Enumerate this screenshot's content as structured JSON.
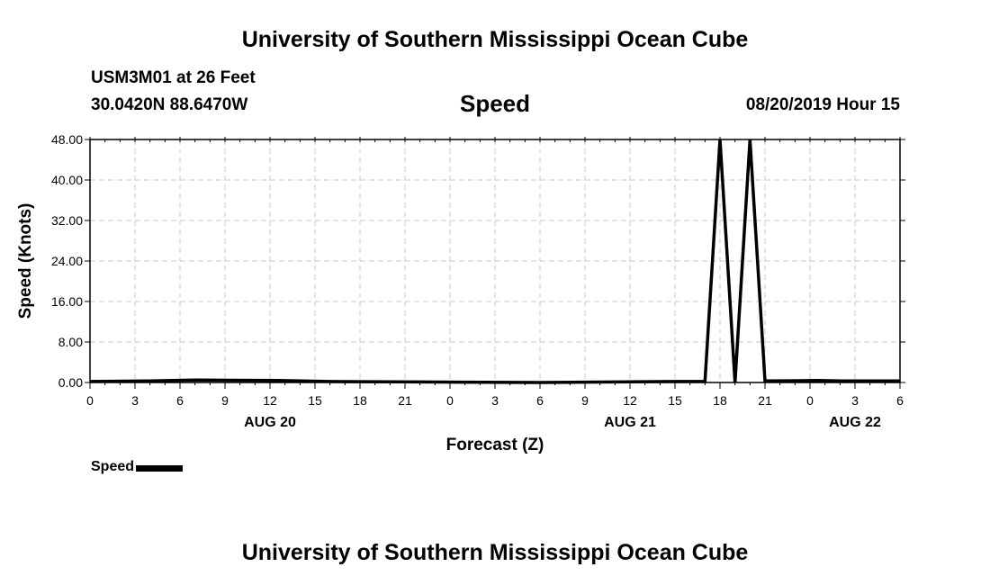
{
  "header": {
    "title": "University of Southern Mississippi Ocean Cube",
    "station": "USM3M01 at 26 Feet",
    "coordinates": "30.0420N 88.6470W",
    "chart_title": "Speed",
    "datetime": "08/20/2019 Hour 15"
  },
  "footer": {
    "title": "University of Southern Mississippi Ocean Cube"
  },
  "legend": {
    "label": "Speed",
    "color": "#000000"
  },
  "chart_data": {
    "type": "line",
    "title": "Speed",
    "xlabel": "Forecast (Z)",
    "ylabel": "Speed (Knots)",
    "x_unit": "hours since 08/20 00Z",
    "xlim": [
      0,
      54
    ],
    "ylim": [
      0,
      48
    ],
    "grid": true,
    "yticks": [
      "0.00",
      "8.00",
      "16.00",
      "24.00",
      "32.00",
      "40.00",
      "48.00"
    ],
    "xticks": [
      {
        "x": 0,
        "label": "0"
      },
      {
        "x": 3,
        "label": "3"
      },
      {
        "x": 6,
        "label": "6"
      },
      {
        "x": 9,
        "label": "9"
      },
      {
        "x": 12,
        "label": "12"
      },
      {
        "x": 15,
        "label": "15"
      },
      {
        "x": 18,
        "label": "18"
      },
      {
        "x": 21,
        "label": "21"
      },
      {
        "x": 24,
        "label": "0"
      },
      {
        "x": 27,
        "label": "3"
      },
      {
        "x": 30,
        "label": "6"
      },
      {
        "x": 33,
        "label": "9"
      },
      {
        "x": 36,
        "label": "12"
      },
      {
        "x": 39,
        "label": "15"
      },
      {
        "x": 42,
        "label": "18"
      },
      {
        "x": 45,
        "label": "21"
      },
      {
        "x": 48,
        "label": "0"
      },
      {
        "x": 51,
        "label": "3"
      },
      {
        "x": 54,
        "label": "6"
      }
    ],
    "date_labels": [
      {
        "x": 12,
        "label": "AUG 20"
      },
      {
        "x": 36,
        "label": "AUG 21"
      },
      {
        "x": 51,
        "label": "AUG 22"
      }
    ],
    "series": [
      {
        "name": "Speed",
        "color": "#000000",
        "points": [
          [
            0,
            0.2
          ],
          [
            4,
            0.3
          ],
          [
            7,
            0.5
          ],
          [
            12.5,
            0.4
          ],
          [
            16,
            0.2
          ],
          [
            22,
            0.1
          ],
          [
            30,
            0.0
          ],
          [
            35,
            0.1
          ],
          [
            39,
            0.2
          ],
          [
            41,
            0.2
          ],
          [
            42,
            48.0
          ],
          [
            43,
            0.0
          ],
          [
            44,
            48.0
          ],
          [
            45,
            0.3
          ],
          [
            48.5,
            0.4
          ],
          [
            50,
            0.3
          ],
          [
            54,
            0.3
          ]
        ]
      }
    ]
  }
}
